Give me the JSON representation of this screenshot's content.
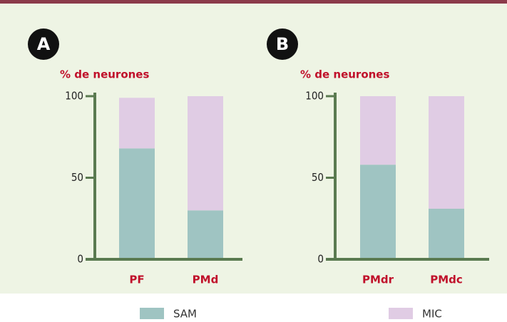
{
  "chart_data": [
    {
      "type": "bar",
      "stacked": true,
      "panel": "A",
      "ylabel": "% de neurones",
      "categories": [
        "PF",
        "PMd"
      ],
      "series": [
        {
          "name": "SAM",
          "color": "#9fc4c2",
          "values": [
            68,
            30
          ]
        },
        {
          "name": "MIC",
          "color": "#e0cce4",
          "values": [
            31,
            70
          ]
        }
      ],
      "ylim": [
        0,
        100
      ],
      "yticks": [
        0,
        50,
        100
      ]
    },
    {
      "type": "bar",
      "stacked": true,
      "panel": "B",
      "ylabel": "% de neurones",
      "categories": [
        "PMdr",
        "PMdc"
      ],
      "series": [
        {
          "color": "#9fc4c2",
          "values": [
            58,
            31
          ]
        },
        {
          "color": "#e0cce4",
          "values": [
            42,
            69
          ]
        }
      ],
      "ylim": [
        0,
        100
      ],
      "yticks": [
        0,
        50,
        100
      ]
    }
  ]
}
